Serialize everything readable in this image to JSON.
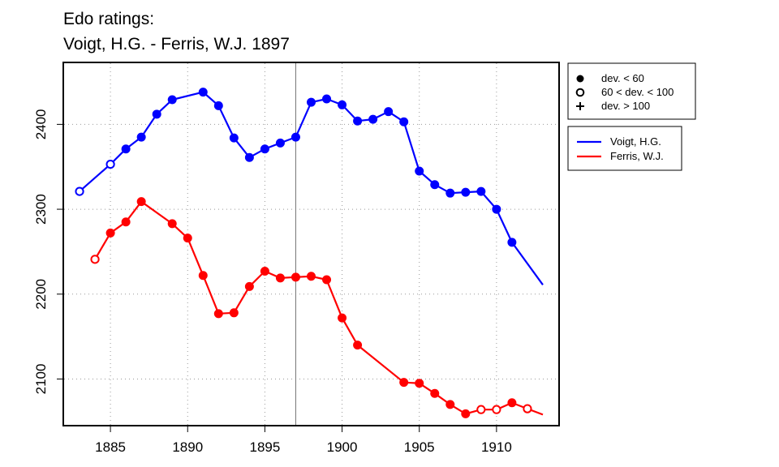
{
  "chart_data": {
    "type": "line",
    "title_lines": [
      "Edo ratings:",
      "Voigt, H.G. - Ferris, W.J. 1897"
    ],
    "xlabel": "",
    "ylabel": "",
    "xlim": [
      1882,
      1914
    ],
    "ylim": [
      2046,
      2472
    ],
    "x_ticks": [
      1885,
      1890,
      1895,
      1900,
      1905,
      1910
    ],
    "y_ticks": [
      2100,
      2200,
      2300,
      2400
    ],
    "grid": true,
    "marked_year": 1897,
    "marker_legend": [
      {
        "symbol": "filled",
        "label": "dev. < 60"
      },
      {
        "symbol": "open",
        "label": "60 < dev. < 100"
      },
      {
        "symbol": "plus",
        "label": "dev. > 100"
      }
    ],
    "series": [
      {
        "name": "Voigt, H.G.",
        "color": "#0000ff",
        "x": [
          1883,
          1885,
          1886,
          1887,
          1888,
          1889,
          1891,
          1892,
          1893,
          1894,
          1895,
          1896,
          1897,
          1898,
          1899,
          1900,
          1901,
          1902,
          1903,
          1904,
          1905,
          1906,
          1907,
          1908,
          1909,
          1910,
          1911,
          1913
        ],
        "y": [
          2321,
          2353,
          2371,
          2385,
          2412,
          2429,
          2438,
          2422,
          2384,
          2361,
          2371,
          2378,
          2385,
          2426,
          2430,
          2423,
          2404,
          2406,
          2415,
          2403,
          2345,
          2329,
          2319,
          2320,
          2321,
          2300,
          2261,
          2211
        ],
        "markers": [
          "open",
          "open",
          "filled",
          "filled",
          "filled",
          "filled",
          "filled",
          "filled",
          "filled",
          "filled",
          "filled",
          "filled",
          "filled",
          "filled",
          "filled",
          "filled",
          "filled",
          "filled",
          "filled",
          "filled",
          "filled",
          "filled",
          "filled",
          "filled",
          "filled",
          "filled",
          "filled",
          "none"
        ]
      },
      {
        "name": "Ferris, W.J.",
        "color": "#ff0000",
        "x": [
          1884,
          1885,
          1886,
          1887,
          1889,
          1890,
          1891,
          1892,
          1893,
          1894,
          1895,
          1896,
          1897,
          1898,
          1899,
          1900,
          1901,
          1904,
          1905,
          1906,
          1907,
          1908,
          1909,
          1910,
          1911,
          1912,
          1913
        ],
        "y": [
          2241,
          2272,
          2285,
          2309,
          2283,
          2266,
          2222,
          2177,
          2178,
          2209,
          2227,
          2219,
          2220,
          2221,
          2217,
          2172,
          2140,
          2096,
          2095,
          2083,
          2070,
          2059,
          2064,
          2064,
          2072,
          2065,
          2058
        ],
        "markers": [
          "open",
          "filled",
          "filled",
          "filled",
          "filled",
          "filled",
          "filled",
          "filled",
          "filled",
          "filled",
          "filled",
          "filled",
          "filled",
          "filled",
          "filled",
          "filled",
          "filled",
          "filled",
          "filled",
          "filled",
          "filled",
          "filled",
          "open",
          "open",
          "filled",
          "open",
          "none"
        ]
      }
    ]
  }
}
